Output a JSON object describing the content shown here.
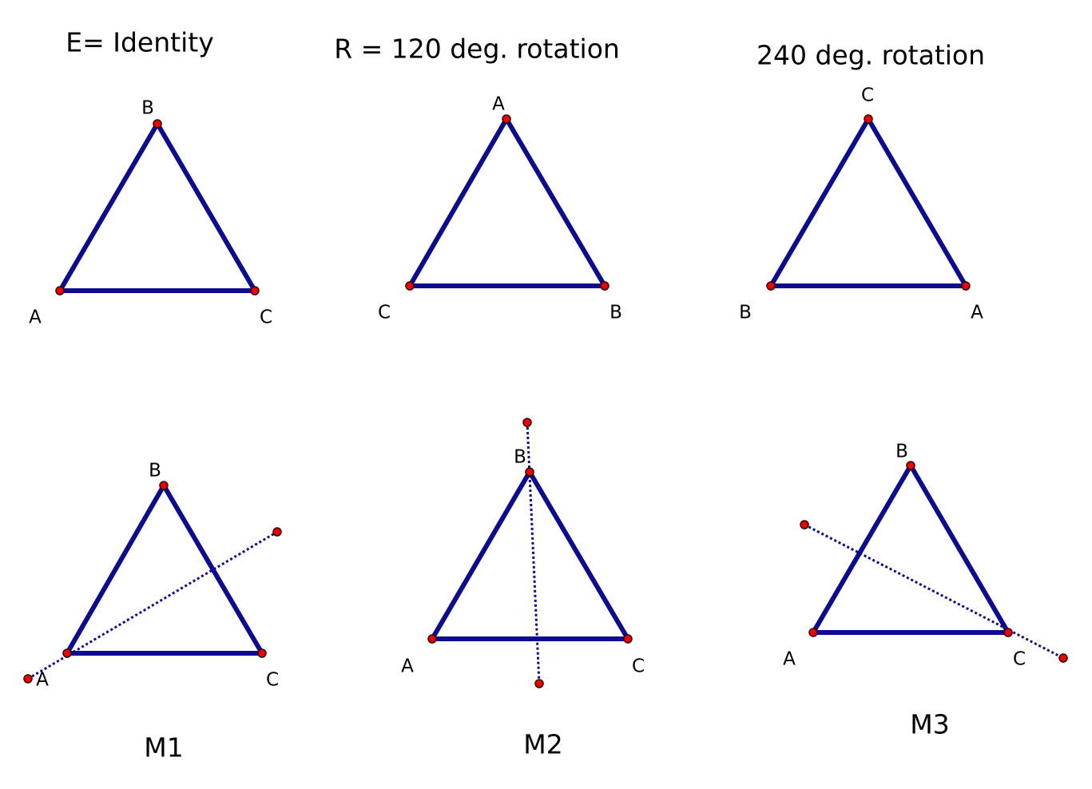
{
  "panels": [
    {
      "title": "E= Identity",
      "vertices": {
        "left": "A",
        "top": "B",
        "right": "C"
      }
    },
    {
      "title": "R = 120 deg. rotation",
      "vertices": {
        "left": "C",
        "top": "A",
        "right": "B"
      }
    },
    {
      "title": "240 deg. rotation",
      "vertices": {
        "left": "B",
        "top": "C",
        "right": "A"
      }
    },
    {
      "title": "M1",
      "vertices": {
        "left": "A",
        "top": "B",
        "right": "C"
      }
    },
    {
      "title": "M2",
      "vertices": {
        "left": "A",
        "top": "B",
        "right": "C"
      }
    },
    {
      "title": "M3",
      "vertices": {
        "left": "A",
        "top": "B",
        "right": "C"
      }
    }
  ]
}
